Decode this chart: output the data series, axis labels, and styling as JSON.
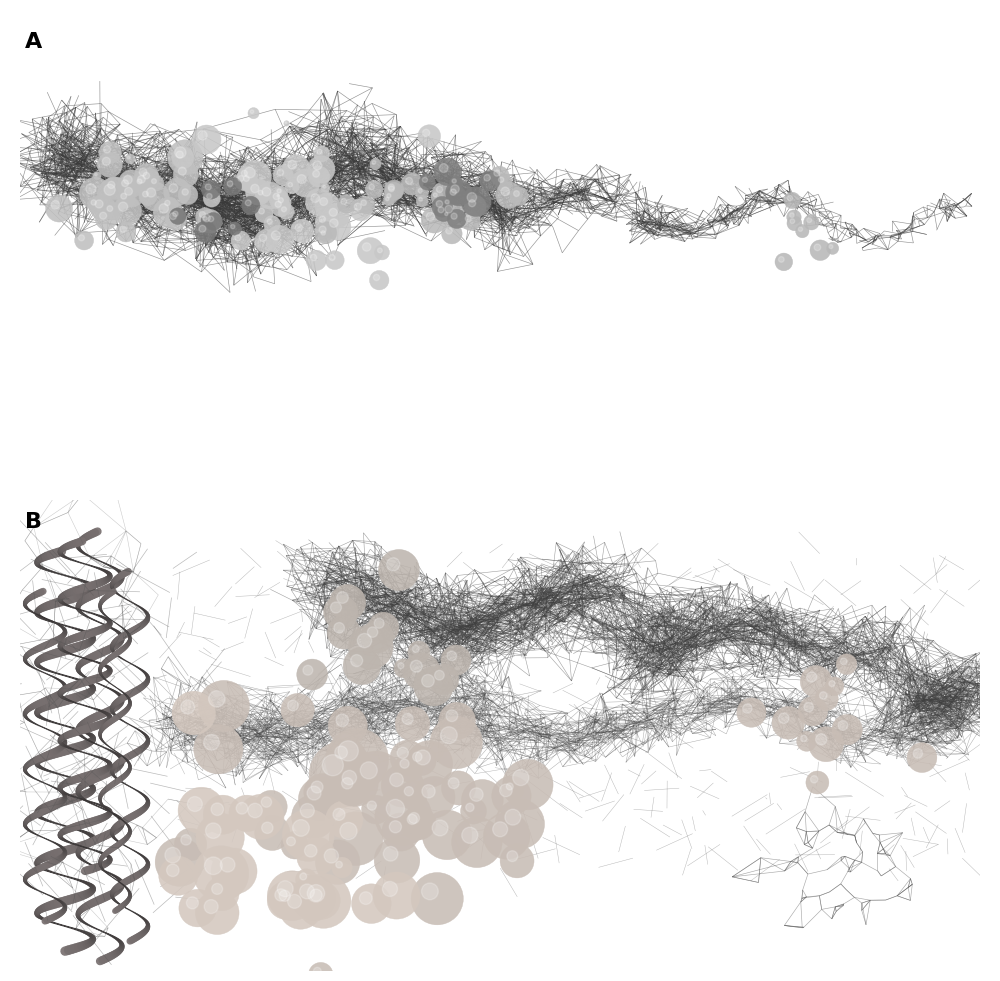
{
  "figure_width": 10.0,
  "figure_height": 9.81,
  "dpi": 100,
  "background_color": "#ffffff",
  "panel_A_label": "A",
  "panel_B_label": "B",
  "label_fontsize": 16,
  "label_fontweight": "bold",
  "seed_A": 12345,
  "seed_B": 67890,
  "mesh_color_A": "#444444",
  "mesh_color_B_light": "#888888",
  "mesh_color_B_dark": "#333333",
  "sphere_color_A_light": "#c8c8c8",
  "sphere_color_A_dark": "#888888",
  "sphere_color_B": "#c0b8b0",
  "helix_color": "#aaaaaa"
}
